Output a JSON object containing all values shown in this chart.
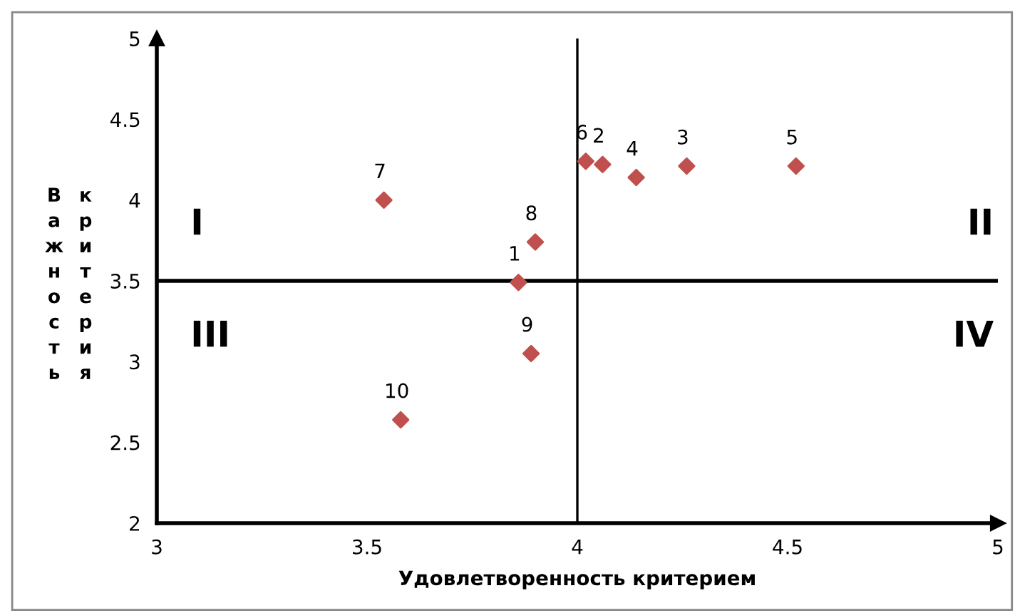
{
  "chart_data": {
    "type": "scatter",
    "xlabel": "Удовлетворенность критерием",
    "ylabel": "Важность критерия",
    "series": [
      {
        "color": "#c0504d",
        "x": [
          3.86,
          4.06,
          4.26,
          4.14,
          4.52,
          4.02,
          3.54,
          3.9,
          3.89,
          3.58
        ],
        "values": [
          3.49,
          4.22,
          4.21,
          4.14,
          4.21,
          4.24,
          4.0,
          3.74,
          3.05,
          2.64
        ]
      }
    ],
    "marker": "diamond",
    "xlim": [
      3,
      5
    ],
    "ylim": [
      2,
      5
    ],
    "xticks": [
      3,
      3.5,
      4,
      4.5,
      5
    ],
    "yticks": [
      2,
      2.5,
      3,
      3.5,
      4,
      4.5,
      5
    ],
    "ref_lines": [
      {
        "axis": "x",
        "value": 4,
        "color": "#000000"
      },
      {
        "axis": "y",
        "value": 3.5,
        "color": "#000000"
      }
    ],
    "annotations": [
      {
        "text": "1",
        "x": 3.86,
        "y": 3.49
      },
      {
        "text": "2",
        "x": 4.06,
        "y": 4.22
      },
      {
        "text": "3",
        "x": 4.26,
        "y": 4.21
      },
      {
        "text": "4",
        "x": 4.14,
        "y": 4.14
      },
      {
        "text": "5",
        "x": 4.52,
        "y": 4.21
      },
      {
        "text": "6",
        "x": 4.02,
        "y": 4.24
      },
      {
        "text": "7",
        "x": 3.54,
        "y": 4.0
      },
      {
        "text": "8",
        "x": 3.9,
        "y": 3.74
      },
      {
        "text": "9",
        "x": 3.89,
        "y": 3.05
      },
      {
        "text": "10",
        "x": 3.58,
        "y": 2.64
      },
      "I",
      "II",
      "III",
      "IV"
    ],
    "grid": false,
    "legend": false
  }
}
